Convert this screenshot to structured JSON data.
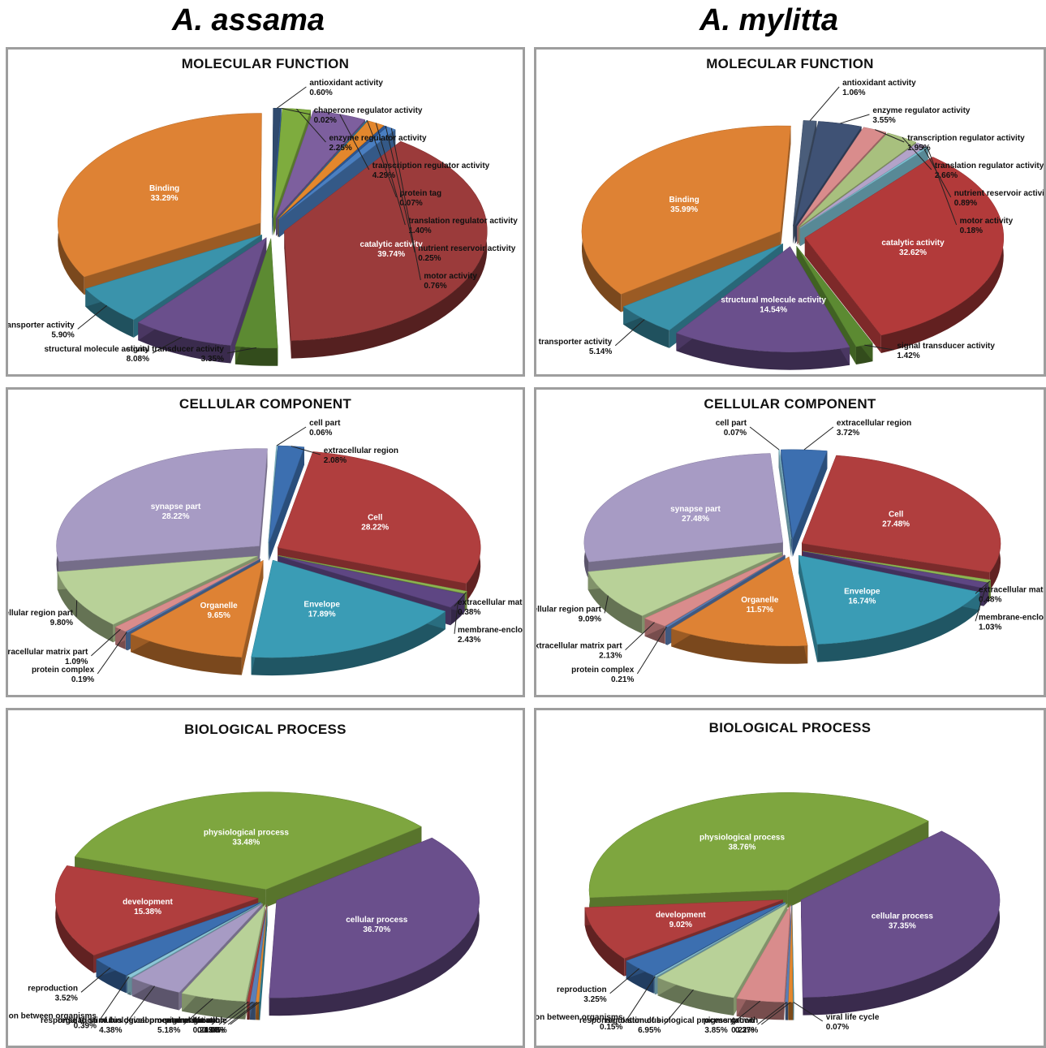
{
  "species": [
    "A. assama",
    "A. mylitta"
  ],
  "chart_data": [
    {
      "type": "pie",
      "species": "A. assama",
      "title": "MOLECULAR FUNCTION",
      "slices": [
        {
          "label": "catalytic activity",
          "value": 39.74,
          "pct": "39.74%",
          "color": "#9b3b3b",
          "inside": true
        },
        {
          "label": "signal transducer activity",
          "value": 3.35,
          "pct": "3.35%",
          "color": "#5c8a32"
        },
        {
          "label": "structural molecule activity",
          "value": 8.08,
          "pct": "8.08%",
          "color": "#6a4f8c"
        },
        {
          "label": "transporter activity",
          "value": 5.9,
          "pct": "5.90%",
          "color": "#3a93ab"
        },
        {
          "label": "Binding",
          "value": 33.29,
          "pct": "33.29%",
          "color": "#de8234",
          "inside": true
        },
        {
          "label": "antioxidant activity",
          "value": 0.6,
          "pct": "0.60%",
          "color": "#2f4a6e"
        },
        {
          "label": "chaperone regulator activity",
          "value": 0.02,
          "pct": "0.02%",
          "color": "#3c6fb0"
        },
        {
          "label": "enzyme regulator activity",
          "value": 2.25,
          "pct": "2.25%",
          "color": "#7eac3e"
        },
        {
          "label": "transcription regulator activity",
          "value": 4.29,
          "pct": "4.29%",
          "color": "#7d5f9e"
        },
        {
          "label": "protein tag",
          "value": 0.07,
          "pct": "0.07%",
          "color": "#2e7ea1"
        },
        {
          "label": "translation regulator activity",
          "value": 1.4,
          "pct": "1.40%",
          "color": "#e3872d"
        },
        {
          "label": "nutrient reservoir activity",
          "value": 0.25,
          "pct": "0.25%",
          "color": "#2b5797"
        },
        {
          "label": "motor activity",
          "value": 0.76,
          "pct": "0.76%",
          "color": "#4a7fc1"
        }
      ]
    },
    {
      "type": "pie",
      "species": "A. mylitta",
      "title": "MOLECULAR FUNCTION",
      "slices": [
        {
          "label": "catalytic activity",
          "value": 32.62,
          "pct": "32.62%",
          "color": "#b23a3a",
          "inside": true
        },
        {
          "label": "signal transducer activity",
          "value": 1.42,
          "pct": "1.42%",
          "color": "#5c8a32"
        },
        {
          "label": "structural molecule activity",
          "value": 14.54,
          "pct": "14.54%",
          "color": "#6a4f8c",
          "inside": true
        },
        {
          "label": "transporter activity",
          "value": 5.14,
          "pct": "5.14%",
          "color": "#3a93ab"
        },
        {
          "label": "Binding",
          "value": 35.99,
          "pct": "35.99%",
          "color": "#de8234",
          "inside": true
        },
        {
          "label": "antioxidant activity",
          "value": 1.06,
          "pct": "1.06%",
          "color": "#4a5d7a"
        },
        {
          "label": "enzyme regulator activity",
          "value": 3.55,
          "pct": "3.55%",
          "color": "#3f5275"
        },
        {
          "label": "transcription regulator activity",
          "value": 1.95,
          "pct": "1.95%",
          "color": "#d98c8c"
        },
        {
          "label": "translation regulator activity",
          "value": 2.66,
          "pct": "2.66%",
          "color": "#a8c07e"
        },
        {
          "label": "nutrient reservoir activity",
          "value": 0.89,
          "pct": "0.89%",
          "color": "#b3a3c9"
        },
        {
          "label": "motor activity",
          "value": 0.18,
          "pct": "0.18%",
          "color": "#7ec4d6"
        }
      ]
    },
    {
      "type": "pie",
      "species": "A. assama",
      "title": "CELLULAR COMPONENT",
      "slices": [
        {
          "label": "Cell",
          "value": 28.22,
          "pct": "28.22%",
          "color": "#b03e3e",
          "inside": true
        },
        {
          "label": "extracellular matrix",
          "value": 0.38,
          "pct": "0.38%",
          "color": "#8db552"
        },
        {
          "label": "membrane-enclosed lumen",
          "value": 2.43,
          "pct": "2.43%",
          "color": "#5e4683"
        },
        {
          "label": "Envelope",
          "value": 17.89,
          "pct": "17.89%",
          "color": "#3a9cb5",
          "inside": true
        },
        {
          "label": "Organelle",
          "value": 9.65,
          "pct": "9.65%",
          "color": "#de8234",
          "inside": true
        },
        {
          "label": "protein complex",
          "value": 0.19,
          "pct": "0.19%",
          "color": "#5b7fb7"
        },
        {
          "label": "extracellular matrix part",
          "value": 1.09,
          "pct": "1.09%",
          "color": "#d98c8c"
        },
        {
          "label": "extracellular region part",
          "value": 9.8,
          "pct": "9.80%",
          "color": "#b8d198"
        },
        {
          "label": "synapse part",
          "value": 28.22,
          "pct": "28.22%",
          "color": "#a79bc4",
          "inside": true
        },
        {
          "label": "cell part",
          "value": 0.06,
          "pct": "0.06%",
          "color": "#8cc7d8"
        },
        {
          "label": "extracellular region",
          "value": 2.08,
          "pct": "2.08%",
          "color": "#3c6fb0"
        }
      ]
    },
    {
      "type": "pie",
      "species": "A. mylitta",
      "title": "CELLULAR COMPONENT",
      "slices": [
        {
          "label": "Cell",
          "value": 27.48,
          "pct": "27.48%",
          "color": "#b03e3e",
          "inside": true
        },
        {
          "label": "extracellular matrix",
          "value": 0.48,
          "pct": "0.48%",
          "color": "#8db552"
        },
        {
          "label": "membrane-enclosed lumen",
          "value": 1.03,
          "pct": "1.03%",
          "color": "#5e4683"
        },
        {
          "label": "Envelope",
          "value": 16.74,
          "pct": "16.74%",
          "color": "#3a9cb5",
          "inside": true
        },
        {
          "label": "Organelle",
          "value": 11.57,
          "pct": "11.57%",
          "color": "#de8234",
          "inside": true
        },
        {
          "label": "protein complex",
          "value": 0.21,
          "pct": "0.21%",
          "color": "#5b7fb7"
        },
        {
          "label": "extracellular matrix part",
          "value": 2.13,
          "pct": "2.13%",
          "color": "#d98c8c"
        },
        {
          "label": "extracellular region part",
          "value": 9.09,
          "pct": "9.09%",
          "color": "#b8d198"
        },
        {
          "label": "synapse part",
          "value": 27.48,
          "pct": "27.48%",
          "color": "#a79bc4",
          "inside": true
        },
        {
          "label": "cell part",
          "value": 0.07,
          "pct": "0.07%",
          "color": "#8cc7d8"
        },
        {
          "label": "extracellular region",
          "value": 3.72,
          "pct": "3.72%",
          "color": "#3c6fb0"
        }
      ]
    },
    {
      "type": "pie",
      "species": "A. assama",
      "title": "BIOLOGICAL PROCESS",
      "slices": [
        {
          "label": "cellular process",
          "value": 36.7,
          "pct": "36.70%",
          "color": "#6a4f8c",
          "inside": true
        },
        {
          "label": "viral life cycle",
          "value": 0.08,
          "pct": "0.08%",
          "color": "#3a93ab"
        },
        {
          "label": "developmental maturation",
          "value": 0.24,
          "pct": "0.24%",
          "color": "#e3872d"
        },
        {
          "label": "growth",
          "value": 0.45,
          "pct": "0.45%",
          "color": "#5b7fb7"
        },
        {
          "label": "pigmentation",
          "value": 0.21,
          "pct": "0.21%",
          "color": "#a53c3c"
        },
        {
          "label": "regulation of biological process",
          "value": 5.18,
          "pct": "5.18%",
          "color": "#b8d198"
        },
        {
          "label": "response to stimulus",
          "value": 4.38,
          "pct": "4.38%",
          "color": "#a79bc4"
        },
        {
          "label": "interaction between organisms",
          "value": 0.39,
          "pct": "0.39%",
          "color": "#8cc7d8"
        },
        {
          "label": "reproduction",
          "value": 3.52,
          "pct": "3.52%",
          "color": "#3c6fb0"
        },
        {
          "label": "development",
          "value": 15.38,
          "pct": "15.38%",
          "color": "#b03e3e",
          "inside": true
        },
        {
          "label": "physiological process",
          "value": 33.48,
          "pct": "33.48%",
          "color": "#7ea63f",
          "inside": true
        }
      ]
    },
    {
      "type": "pie",
      "species": "A. mylitta",
      "title": "BIOLOGICAL PROCESS",
      "slices": [
        {
          "label": "cellular process",
          "value": 37.35,
          "pct": "37.35%",
          "color": "#6a4f8c",
          "inside": true
        },
        {
          "label": "viral life cycle",
          "value": 0.07,
          "pct": "0.07%",
          "color": "#3a93ab"
        },
        {
          "label": "growth",
          "value": 0.37,
          "pct": "0.37%",
          "color": "#e3872d"
        },
        {
          "label": "pigmentation",
          "value": 0.22,
          "pct": "0.22%",
          "color": "#5b7fb7"
        },
        {
          "label": "regulation of biological process",
          "value": 3.85,
          "pct": "3.85%",
          "color": "#d98c8c"
        },
        {
          "label": "response to stimulus",
          "value": 6.95,
          "pct": "6.95%",
          "color": "#b8d198"
        },
        {
          "label": "interaction between organisms",
          "value": 0.15,
          "pct": "0.15%",
          "color": "#8cc7d8"
        },
        {
          "label": "reproduction",
          "value": 3.25,
          "pct": "3.25%",
          "color": "#3c6fb0"
        },
        {
          "label": "development",
          "value": 9.02,
          "pct": "9.02%",
          "color": "#b03e3e",
          "inside": true
        },
        {
          "label": "physiological process",
          "value": 38.76,
          "pct": "38.76%",
          "color": "#7ea63f",
          "inside": true
        }
      ]
    }
  ]
}
